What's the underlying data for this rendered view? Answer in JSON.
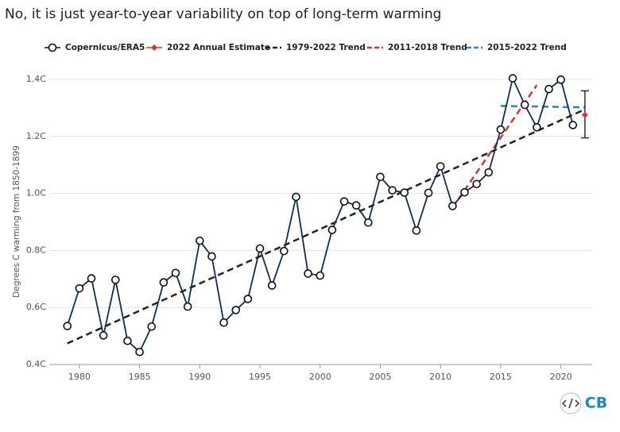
{
  "chart_data": {
    "type": "line",
    "title": "No, it is just year-to-year variability on top of long-term warming",
    "ylabel": "Degrees C warming from 1850-1899",
    "logo": "CB",
    "xlim": [
      1977.5,
      2022.6
    ],
    "ylim": [
      0.4,
      1.4
    ],
    "xticks": [
      1980,
      1985,
      1990,
      1995,
      2000,
      2005,
      2010,
      2015,
      2020
    ],
    "yticks": [
      {
        "value": 0.4,
        "label": "0.4C"
      },
      {
        "value": 0.6,
        "label": "0.6C"
      },
      {
        "value": 0.8,
        "label": "0.8C"
      },
      {
        "value": 1.0,
        "label": "1.0C"
      },
      {
        "value": 1.2,
        "label": "1.2C"
      },
      {
        "value": 1.4,
        "label": "1.4C"
      }
    ],
    "grid": true,
    "series": [
      {
        "name": "Copernicus/ERA5",
        "color": "#0d2d5a",
        "marker": "circle",
        "x": [
          1979,
          1980,
          1981,
          1982,
          1983,
          1984,
          1985,
          1986,
          1987,
          1988,
          1989,
          1990,
          1991,
          1992,
          1993,
          1994,
          1995,
          1996,
          1997,
          1998,
          1999,
          2000,
          2001,
          2002,
          2003,
          2004,
          2005,
          2006,
          2007,
          2008,
          2009,
          2010,
          2011,
          2012,
          2013,
          2014,
          2015,
          2016,
          2017,
          2018,
          2019,
          2020,
          2021
        ],
        "values": [
          0.535,
          0.667,
          0.702,
          0.502,
          0.697,
          0.483,
          0.444,
          0.533,
          0.688,
          0.721,
          0.603,
          0.834,
          0.779,
          0.547,
          0.591,
          0.63,
          0.807,
          0.677,
          0.798,
          0.988,
          0.719,
          0.712,
          0.872,
          0.972,
          0.958,
          0.898,
          1.058,
          1.011,
          1.003,
          0.87,
          1.002,
          1.095,
          0.956,
          1.004,
          1.033,
          1.074,
          1.224,
          1.404,
          1.311,
          1.232,
          1.366,
          1.399,
          1.24
        ]
      },
      {
        "name": "2022 Annual Estimate",
        "color": "#d0392b",
        "marker": "diamond",
        "x": [
          2022
        ],
        "values": [
          1.275
        ],
        "lower": [
          1.195
        ],
        "upper": [
          1.36
        ]
      },
      {
        "name": "1979-2022 Trend",
        "color": "#222222",
        "dash": true,
        "x": [
          1979,
          2022
        ],
        "values": [
          0.474,
          1.295
        ]
      },
      {
        "name": "2011-2018 Trend",
        "color": "#d0392b",
        "dash": true,
        "x": [
          2011,
          2018
        ],
        "values": [
          0.95,
          1.38
        ]
      },
      {
        "name": "2015-2022 Trend",
        "color": "#1f86c8",
        "dash": true,
        "x": [
          2015,
          2022
        ],
        "values": [
          1.307,
          1.302
        ]
      }
    ]
  }
}
